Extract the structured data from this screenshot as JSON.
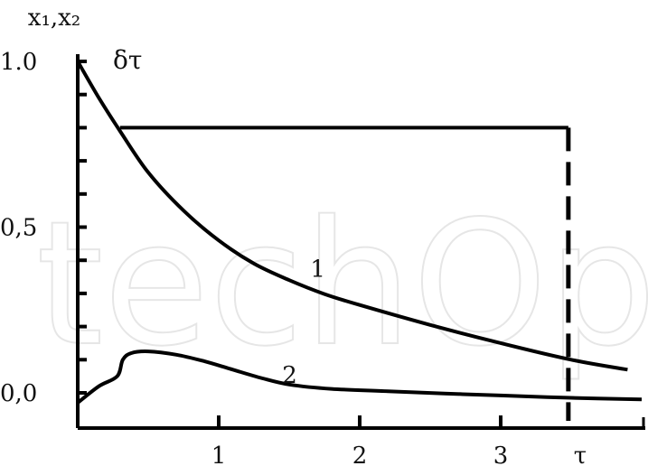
{
  "chart_data": {
    "type": "line",
    "ylabel": "x₁,x₂",
    "xlabel": "τ",
    "annotation": "δτ",
    "xlim": [
      0,
      4.0
    ],
    "ylim": [
      -0.03,
      1.0
    ],
    "xticks": [
      {
        "value": 1,
        "label": "1"
      },
      {
        "value": 2,
        "label": "2"
      },
      {
        "value": 3,
        "label": "3"
      }
    ],
    "yticks": [
      {
        "value": 0.0,
        "label": "0,0"
      },
      {
        "value": 0.5,
        "label": "0,5"
      },
      {
        "value": 1.0,
        "label": "1.0"
      }
    ],
    "minor_yticks": [
      0.1,
      0.2,
      0.3,
      0.4,
      0.6,
      0.7,
      0.8,
      0.9
    ],
    "series": [
      {
        "name": "1",
        "label_at": [
          1.65,
          0.35
        ],
        "x": [
          0.0,
          0.15,
          0.3,
          0.5,
          0.75,
          1.0,
          1.25,
          1.5,
          1.75,
          2.0,
          2.5,
          3.0,
          3.5,
          3.9
        ],
        "y": [
          1.0,
          0.89,
          0.79,
          0.665,
          0.55,
          0.46,
          0.39,
          0.34,
          0.298,
          0.265,
          0.205,
          0.15,
          0.1,
          0.07
        ]
      },
      {
        "name": "2",
        "label_at": [
          1.45,
          0.03
        ],
        "x": [
          0.0,
          0.15,
          0.28,
          0.32,
          0.38,
          0.5,
          0.7,
          0.9,
          1.1,
          1.3,
          1.5,
          1.8,
          2.2,
          2.6,
          3.0,
          3.5,
          4.0
        ],
        "y": [
          -0.03,
          0.02,
          0.05,
          0.1,
          0.12,
          0.125,
          0.115,
          0.095,
          0.07,
          0.045,
          0.025,
          0.012,
          0.005,
          -0.002,
          -0.008,
          -0.015,
          -0.02
        ]
      }
    ],
    "pulse": {
      "x_start": 0.3,
      "x_end": 3.48,
      "level": 0.8,
      "ticks_height": 0.05
    },
    "grid": false
  },
  "watermark": "techOpen"
}
